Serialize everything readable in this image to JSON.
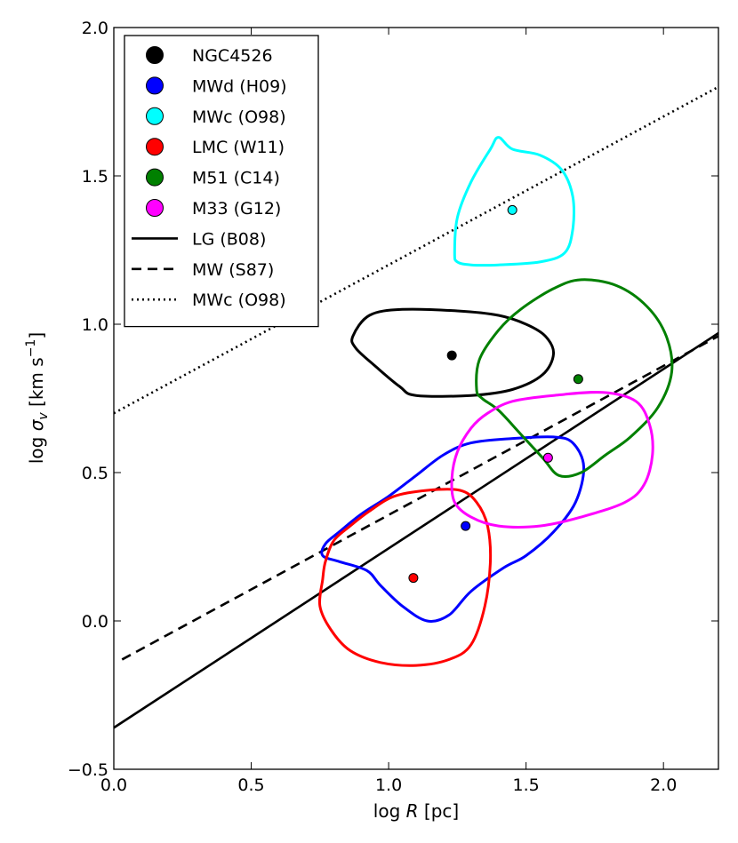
{
  "chart_data": {
    "type": "scatter",
    "xlabel": "log R [pc]",
    "xlabel_parts": {
      "prefix": "log ",
      "var": "R",
      "suffix": " [pc]"
    },
    "ylabel": "log σ_v [km s^-1]",
    "ylabel_parts": {
      "prefix": "log ",
      "var": "σ",
      "sub": "v",
      "unit_open": " [km s",
      "sup": "−1",
      "unit_close": "]"
    },
    "xlim": [
      0.0,
      2.2
    ],
    "ylim": [
      -0.5,
      2.0
    ],
    "xticks": [
      {
        "value": 0.0,
        "label": "0.0"
      },
      {
        "value": 0.5,
        "label": "0.5"
      },
      {
        "value": 1.0,
        "label": "1.0"
      },
      {
        "value": 1.5,
        "label": "1.5"
      },
      {
        "value": 2.0,
        "label": "2.0"
      }
    ],
    "yticks": [
      {
        "value": -0.5,
        "label": "−0.5"
      },
      {
        "value": 0.0,
        "label": "0.0"
      },
      {
        "value": 0.5,
        "label": "0.5"
      },
      {
        "value": 1.0,
        "label": "1.0"
      },
      {
        "value": 1.5,
        "label": "1.5"
      },
      {
        "value": 2.0,
        "label": "2.0"
      }
    ],
    "legend_position": "top-left",
    "points": [
      {
        "id": "ngc4526",
        "name": "NGC4526",
        "x": 1.23,
        "y": 0.895,
        "color": "#000000",
        "contour": [
          [
            0.87,
            0.96
          ],
          [
            0.93,
            1.03
          ],
          [
            1.05,
            1.05
          ],
          [
            1.25,
            1.045
          ],
          [
            1.4,
            1.03
          ],
          [
            1.5,
            1.0
          ],
          [
            1.57,
            0.96
          ],
          [
            1.6,
            0.9
          ],
          [
            1.56,
            0.83
          ],
          [
            1.45,
            0.78
          ],
          [
            1.3,
            0.76
          ],
          [
            1.1,
            0.76
          ],
          [
            1.04,
            0.79
          ],
          [
            0.95,
            0.86
          ],
          [
            0.88,
            0.92
          ]
        ]
      },
      {
        "id": "mwd",
        "name": "MWd (H09)",
        "x": 1.28,
        "y": 0.32,
        "color": "#0000ff",
        "contour": [
          [
            0.77,
            0.26
          ],
          [
            0.82,
            0.3
          ],
          [
            0.9,
            0.36
          ],
          [
            1.0,
            0.42
          ],
          [
            1.1,
            0.49
          ],
          [
            1.2,
            0.56
          ],
          [
            1.3,
            0.6
          ],
          [
            1.45,
            0.615
          ],
          [
            1.6,
            0.62
          ],
          [
            1.67,
            0.6
          ],
          [
            1.71,
            0.52
          ],
          [
            1.68,
            0.4
          ],
          [
            1.6,
            0.3
          ],
          [
            1.5,
            0.22
          ],
          [
            1.42,
            0.18
          ],
          [
            1.3,
            0.1
          ],
          [
            1.22,
            0.02
          ],
          [
            1.14,
            0.0
          ],
          [
            1.05,
            0.05
          ],
          [
            0.97,
            0.12
          ],
          [
            0.92,
            0.17
          ],
          [
            0.82,
            0.2
          ],
          [
            0.76,
            0.22
          ]
        ]
      },
      {
        "id": "mwc",
        "name": "MWc (O98)",
        "x": 1.45,
        "y": 1.385,
        "color": "#00ffff",
        "contour": [
          [
            1.24,
            1.24
          ],
          [
            1.25,
            1.36
          ],
          [
            1.3,
            1.48
          ],
          [
            1.37,
            1.59
          ],
          [
            1.4,
            1.63
          ],
          [
            1.45,
            1.59
          ],
          [
            1.55,
            1.57
          ],
          [
            1.63,
            1.52
          ],
          [
            1.67,
            1.43
          ],
          [
            1.67,
            1.32
          ],
          [
            1.64,
            1.24
          ],
          [
            1.55,
            1.21
          ],
          [
            1.4,
            1.2
          ],
          [
            1.3,
            1.2
          ],
          [
            1.25,
            1.21
          ]
        ]
      },
      {
        "id": "lmc",
        "name": "LMC (W11)",
        "x": 1.09,
        "y": 0.145,
        "color": "#ff0000",
        "contour": [
          [
            0.77,
            0.2
          ],
          [
            0.8,
            0.27
          ],
          [
            0.86,
            0.32
          ],
          [
            0.93,
            0.37
          ],
          [
            1.02,
            0.42
          ],
          [
            1.14,
            0.44
          ],
          [
            1.26,
            0.44
          ],
          [
            1.32,
            0.4
          ],
          [
            1.36,
            0.32
          ],
          [
            1.37,
            0.2
          ],
          [
            1.35,
            0.05
          ],
          [
            1.3,
            -0.08
          ],
          [
            1.22,
            -0.13
          ],
          [
            1.1,
            -0.15
          ],
          [
            0.97,
            -0.14
          ],
          [
            0.86,
            -0.1
          ],
          [
            0.79,
            -0.03
          ],
          [
            0.75,
            0.05
          ],
          [
            0.76,
            0.14
          ]
        ]
      },
      {
        "id": "m51",
        "name": "M51 (C14)",
        "x": 1.69,
        "y": 0.815,
        "color": "#008000",
        "contour": [
          [
            1.32,
            0.78
          ],
          [
            1.33,
            0.88
          ],
          [
            1.4,
            0.98
          ],
          [
            1.48,
            1.05
          ],
          [
            1.6,
            1.12
          ],
          [
            1.7,
            1.15
          ],
          [
            1.83,
            1.13
          ],
          [
            1.94,
            1.06
          ],
          [
            2.01,
            0.96
          ],
          [
            2.03,
            0.84
          ],
          [
            1.98,
            0.72
          ],
          [
            1.88,
            0.62
          ],
          [
            1.79,
            0.56
          ],
          [
            1.7,
            0.5
          ],
          [
            1.62,
            0.49
          ],
          [
            1.56,
            0.55
          ],
          [
            1.48,
            0.63
          ],
          [
            1.4,
            0.71
          ],
          [
            1.34,
            0.75
          ]
        ]
      },
      {
        "id": "m33",
        "name": "M33 (G12)",
        "x": 1.58,
        "y": 0.55,
        "color": "#ff00ff",
        "contour": [
          [
            1.23,
            0.48
          ],
          [
            1.25,
            0.57
          ],
          [
            1.3,
            0.65
          ],
          [
            1.36,
            0.7
          ],
          [
            1.45,
            0.74
          ],
          [
            1.6,
            0.76
          ],
          [
            1.78,
            0.77
          ],
          [
            1.9,
            0.74
          ],
          [
            1.95,
            0.66
          ],
          [
            1.96,
            0.56
          ],
          [
            1.93,
            0.46
          ],
          [
            1.86,
            0.4
          ],
          [
            1.7,
            0.35
          ],
          [
            1.55,
            0.32
          ],
          [
            1.4,
            0.32
          ],
          [
            1.3,
            0.35
          ],
          [
            1.24,
            0.4
          ]
        ]
      }
    ],
    "lines": [
      {
        "id": "lg",
        "name": "LG (B08)",
        "style": "solid",
        "x": [
          0.0,
          2.2
        ],
        "y": [
          -0.36,
          0.97
        ]
      },
      {
        "id": "mw",
        "name": "MW (S87)",
        "style": "dashed",
        "x": [
          0.03,
          2.2
        ],
        "y": [
          -0.13,
          0.96
        ]
      },
      {
        "id": "mwc_line",
        "name": "MWc (O98)",
        "style": "dotted",
        "x": [
          0.0,
          2.2
        ],
        "y": [
          0.7,
          1.8
        ]
      }
    ]
  }
}
